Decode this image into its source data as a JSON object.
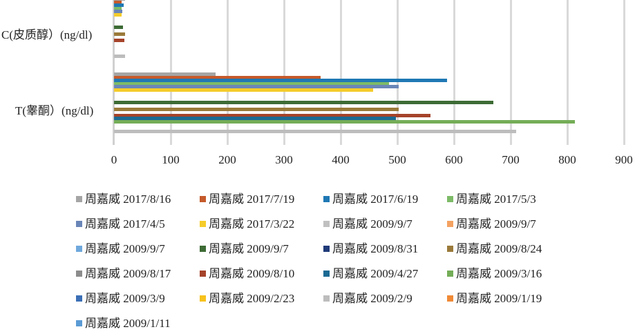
{
  "chart_data": {
    "type": "bar",
    "orientation": "horizontal",
    "title": "",
    "xlabel": "",
    "ylabel": "",
    "xlim": [
      0,
      900
    ],
    "x_ticks": [
      0,
      100,
      200,
      300,
      400,
      500,
      600,
      700,
      800,
      900
    ],
    "grid": true,
    "legend_position": "bottom",
    "categories": [
      "T(睾酮）(ng/dl)",
      "C(皮质醇）(ng/dl)"
    ],
    "series": [
      {
        "name": "周嘉威 2017/8/16",
        "color": "#a5a5a5",
        "values": [
          179,
          20
        ]
      },
      {
        "name": "周嘉威 2017/7/19",
        "color": "#c55a2a",
        "values": [
          365,
          13
        ]
      },
      {
        "name": "周嘉威 2017/6/19",
        "color": "#1f78b4",
        "values": [
          588,
          17
        ]
      },
      {
        "name": "周嘉威 2017/5/3",
        "color": "#7dbb67",
        "values": [
          485,
          14
        ]
      },
      {
        "name": "周嘉威 2017/4/5",
        "color": "#6a86b8",
        "values": [
          502,
          15
        ]
      },
      {
        "name": "周嘉威 2017/3/22",
        "color": "#f5cc2a",
        "values": [
          457,
          13
        ]
      },
      {
        "name": "周嘉威 2009/9/7",
        "color": "#c0c0c0",
        "values": [
          null,
          null
        ]
      },
      {
        "name": "周嘉威 2009/9/7",
        "color": "#f4a261",
        "values": [
          null,
          null
        ]
      },
      {
        "name": "周嘉威 2009/9/7",
        "color": "#6fa8dc",
        "values": [
          null,
          null
        ]
      },
      {
        "name": "周嘉威 2009/9/7",
        "color": "#3d6b35",
        "values": [
          670,
          16
        ]
      },
      {
        "name": "周嘉威 2009/8/31",
        "color": "#1f3a78",
        "values": [
          null,
          null
        ]
      },
      {
        "name": "周嘉威 2009/8/24",
        "color": "#9a7a3a",
        "values": [
          502,
          20
        ]
      },
      {
        "name": "周嘉威 2009/8/17",
        "color": "#8c8c8c",
        "values": [
          null,
          null
        ]
      },
      {
        "name": "周嘉威 2009/8/10",
        "color": "#a5432a",
        "values": [
          558,
          18
        ]
      },
      {
        "name": "周嘉威 2009/4/27",
        "color": "#1b6a93",
        "values": [
          498,
          null
        ]
      },
      {
        "name": "周嘉威 2009/3/16",
        "color": "#74ad57",
        "values": [
          813,
          null
        ]
      },
      {
        "name": "周嘉威 2009/3/9",
        "color": "#3b6fb6",
        "values": [
          null,
          null
        ]
      },
      {
        "name": "周嘉威 2009/2/23",
        "color": "#f7c21c",
        "values": [
          null,
          null
        ]
      },
      {
        "name": "周嘉威 2009/2/9",
        "color": "#bdbdbd",
        "values": [
          710,
          20
        ]
      },
      {
        "name": "周嘉威 2009/1/19",
        "color": "#f08a36",
        "values": [
          null,
          null
        ]
      },
      {
        "name": "周嘉威 2009/1/11",
        "color": "#5b9bd5",
        "values": [
          null,
          null
        ]
      }
    ]
  },
  "axis": {
    "ticks": [
      "0",
      "100",
      "200",
      "300",
      "400",
      "500",
      "600",
      "700",
      "800",
      "900"
    ]
  },
  "legend": {
    "rows": [
      [
        "周嘉威 2017/8/16",
        "周嘉威 2017/7/19",
        "周嘉威 2017/6/19",
        "周嘉威 2017/5/3"
      ],
      [
        "周嘉威 2017/4/5",
        "周嘉威 2017/3/22",
        "周嘉威 2009/9/7",
        "周嘉威 2009/9/7"
      ],
      [
        "周嘉威  2009/9/7",
        "周嘉威  2009/9/7",
        "周嘉威  2009/8/31",
        "周嘉威  2009/8/24"
      ],
      [
        "周嘉威  2009/8/17",
        "周嘉威  2009/8/10",
        "周嘉威  2009/4/27",
        "周嘉威  2009/3/16"
      ],
      [
        "周嘉威  2009/3/9",
        "周嘉威  2009/2/23",
        "周嘉威  2009/2/9",
        "周嘉威  2009/1/19"
      ],
      [
        "周嘉威  2009/1/11"
      ]
    ]
  }
}
